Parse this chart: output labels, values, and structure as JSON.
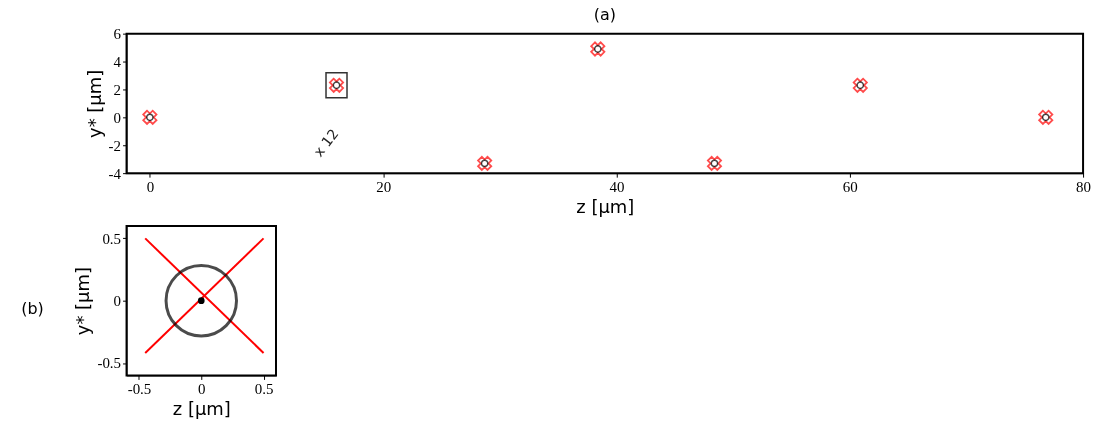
{
  "chart_data": [
    {
      "type": "scatter",
      "title": "(a)",
      "xlabel": "z [µm]",
      "ylabel": "y* [µm]",
      "xlim": [
        -2,
        80
      ],
      "ylim": [
        -4,
        6
      ],
      "xticks": [
        0,
        20,
        40,
        60,
        80
      ],
      "yticks": [
        -4,
        -2,
        0,
        2,
        4,
        6
      ],
      "grid": false,
      "x": [
        0,
        16,
        28.7,
        38.4,
        48.4,
        60.9,
        76.8
      ],
      "series": [
        {
          "color": "#ff0000",
          "marker": "cross",
          "values": [
            0,
            2.3,
            -3.3,
            4.9,
            -3.3,
            2.3,
            0
          ]
        },
        {
          "color": "#000000",
          "marker": "circle",
          "values": [
            0,
            2.3,
            -3.3,
            4.9,
            -3.3,
            2.3,
            0
          ]
        }
      ],
      "annotations": [
        {
          "text": "x 12",
          "x": 16,
          "y": 2.3
        }
      ]
    },
    {
      "type": "scatter",
      "title": "(b)",
      "xlabel": "z [µm]",
      "ylabel": "y* [µm]",
      "xlim": [
        -0.6,
        0.6
      ],
      "ylim": [
        -0.6,
        0.6
      ],
      "xticks": [
        -0.5,
        0,
        0.5
      ],
      "yticks": [
        -0.5,
        0,
        0.5
      ],
      "grid": false,
      "series": [
        {
          "type": "line",
          "color": "#ff0000",
          "x": [
            -0.45,
            0.5
          ],
          "values": [
            0.5,
            -0.42
          ]
        },
        {
          "type": "line",
          "color": "#ff0000",
          "x": [
            -0.45,
            0.5
          ],
          "values": [
            -0.42,
            0.5
          ]
        },
        {
          "type": "bubble",
          "color": "#000000",
          "x": [
            0
          ],
          "values": [
            0
          ],
          "sizes": [
            1
          ]
        },
        {
          "color": "#000000",
          "marker": "circle",
          "x": [
            0
          ],
          "values": [
            0
          ]
        }
      ]
    }
  ]
}
